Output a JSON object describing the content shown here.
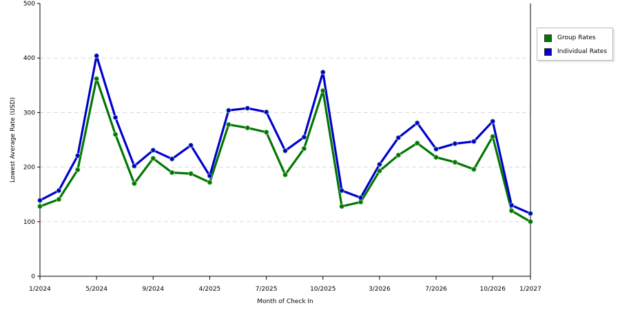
{
  "chart_data": {
    "type": "line",
    "xlabel": "Month of Check In",
    "ylabel": "Lowest Average Rate (USD)",
    "ylim": [
      0,
      500
    ],
    "yticks": [
      0,
      100,
      200,
      300,
      400,
      500
    ],
    "x": [
      "1/2024",
      "2/2024",
      "3/2024",
      "5/2024",
      "6/2024",
      "8/2024",
      "9/2024",
      "10/2024",
      "11/2024",
      "4/2025",
      "5/2025",
      "6/2025",
      "7/2025",
      "8/2025",
      "9/2025",
      "10/2025",
      "11/2025",
      "2/2026",
      "3/2026",
      "4/2026",
      "5/2026",
      "7/2026",
      "8/2026",
      "9/2026",
      "10/2026",
      "11/2026",
      "1/2027"
    ],
    "xtick_labels": [
      {
        "index": 0,
        "label": "1/2024"
      },
      {
        "index": 3,
        "label": "5/2024"
      },
      {
        "index": 6,
        "label": "9/2024"
      },
      {
        "index": 9,
        "label": "4/2025"
      },
      {
        "index": 12,
        "label": "7/2025"
      },
      {
        "index": 15,
        "label": "10/2025"
      },
      {
        "index": 18,
        "label": "3/2026"
      },
      {
        "index": 21,
        "label": "7/2026"
      },
      {
        "index": 24,
        "label": "10/2026"
      },
      {
        "index": 26,
        "label": "1/2027"
      }
    ],
    "series": [
      {
        "name": "Group Rates",
        "color": "#007700",
        "values": [
          128,
          141,
          195,
          362,
          260,
          170,
          216,
          190,
          188,
          172,
          278,
          272,
          264,
          186,
          234,
          340,
          128,
          136,
          193,
          222,
          244,
          218,
          209,
          196,
          256,
          120,
          100
        ]
      },
      {
        "name": "Individual Rates",
        "color": "#0000cc",
        "values": [
          139,
          157,
          221,
          404,
          291,
          202,
          231,
          215,
          240,
          184,
          304,
          308,
          301,
          230,
          255,
          374,
          157,
          144,
          205,
          254,
          281,
          233,
          243,
          247,
          284,
          130,
          115
        ]
      }
    ],
    "grid": true,
    "legend_position": "right"
  }
}
